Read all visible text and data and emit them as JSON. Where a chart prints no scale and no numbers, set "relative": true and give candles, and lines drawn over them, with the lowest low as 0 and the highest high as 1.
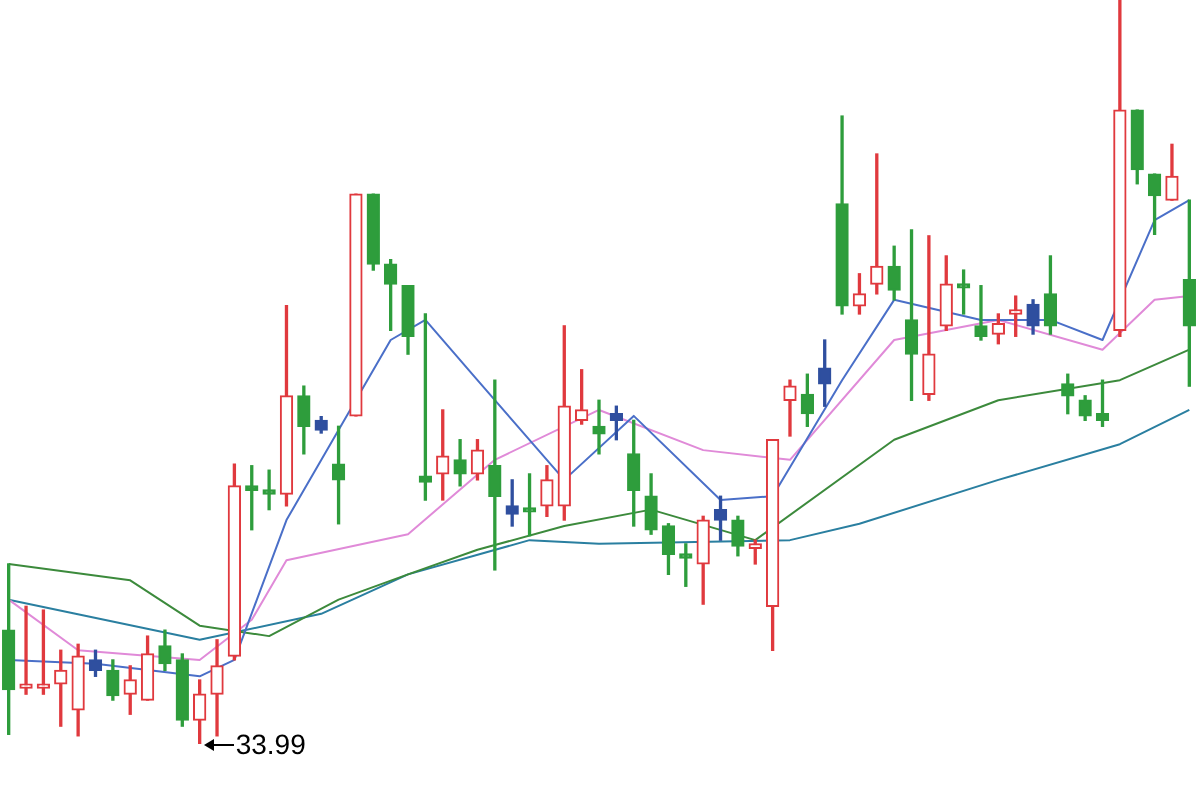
{
  "chart_data": {
    "type": "candlestick",
    "relative": true,
    "categories": [
      null,
      null,
      null,
      null,
      null,
      null,
      null,
      null,
      null,
      null,
      null,
      null,
      null,
      null,
      null,
      null,
      null,
      null,
      null,
      null,
      null,
      null,
      null,
      null,
      null,
      null,
      null,
      null,
      null,
      null,
      null,
      null,
      null,
      null,
      null,
      null,
      null,
      null,
      null,
      null,
      null,
      null,
      null,
      null,
      null,
      null,
      null,
      null,
      null,
      null,
      null,
      null,
      null,
      null,
      null,
      null,
      null,
      null,
      null,
      null,
      null,
      null,
      null,
      null,
      null,
      null,
      null,
      null,
      null
    ],
    "ohlc": [
      [
        0.153,
        0.242,
        0.013,
        0.073
      ],
      [
        0.075,
        0.185,
        0.067,
        0.078
      ],
      [
        0.075,
        0.18,
        0.067,
        0.078
      ],
      [
        0.081,
        0.126,
        0.024,
        0.099
      ],
      [
        0.046,
        0.134,
        0.011,
        0.118
      ],
      [
        0.113,
        0.126,
        0.091,
        0.099
      ],
      [
        0.099,
        0.113,
        0.059,
        0.065
      ],
      [
        0.067,
        0.105,
        0.04,
        0.086
      ],
      [
        0.059,
        0.145,
        0.059,
        0.121
      ],
      [
        0.132,
        0.153,
        0.099,
        0.108
      ],
      [
        0.113,
        0.121,
        0.024,
        0.032
      ],
      [
        0.032,
        0.086,
        0,
        0.067
      ],
      [
        0.067,
        0.14,
        0.011,
        0.105
      ],
      [
        0.118,
        0.376,
        0.113,
        0.347
      ],
      [
        0.347,
        0.374,
        0.288,
        0.341
      ],
      [
        0.341,
        0.368,
        0.315,
        0.336
      ],
      [
        0.336,
        0.589,
        0.32,
        0.468
      ],
      [
        0.468,
        0.481,
        0.39,
        0.427
      ],
      [
        0.435,
        0.44,
        0.418,
        0.422
      ],
      [
        0.376,
        0.427,
        0.296,
        0.355
      ],
      [
        0.441,
        0.739,
        0.441,
        0.739
      ],
      [
        0.739,
        0.739,
        0.637,
        0.645
      ],
      [
        0.645,
        0.651,
        0.556,
        0.618
      ],
      [
        0.616,
        0.616,
        0.524,
        0.548
      ],
      [
        0.36,
        0.578,
        0.328,
        0.352
      ],
      [
        0.363,
        0.449,
        0.328,
        0.387
      ],
      [
        0.382,
        0.409,
        0.347,
        0.363
      ],
      [
        0.363,
        0.409,
        0.355,
        0.395
      ],
      [
        0.374,
        0.489,
        0.234,
        0.333
      ],
      [
        0.32,
        0.355,
        0.293,
        0.309
      ],
      [
        0.317,
        0.363,
        0.28,
        0.312
      ],
      [
        0.32,
        0.374,
        0.306,
        0.355
      ],
      [
        0.32,
        0.562,
        0.301,
        0.454
      ],
      [
        0.435,
        0.503,
        0.43,
        0.449
      ],
      [
        0.427,
        0.462,
        0.39,
        0.417
      ],
      [
        0.444,
        0.454,
        0.409,
        0.435
      ],
      [
        0.39,
        0.435,
        0.293,
        0.341
      ],
      [
        0.333,
        0.363,
        0.282,
        0.288
      ],
      [
        0.293,
        0.296,
        0.228,
        0.255
      ],
      [
        0.255,
        0.269,
        0.212,
        0.25
      ],
      [
        0.242,
        0.306,
        0.188,
        0.301
      ],
      [
        0.315,
        0.333,
        0.274,
        0.301
      ],
      [
        0.301,
        0.306,
        0.253,
        0.266
      ],
      [
        0.263,
        0.274,
        0.242,
        0.269
      ],
      [
        0.185,
        0.409,
        0.126,
        0.409
      ],
      [
        0.462,
        0.489,
        0.414,
        0.481
      ],
      [
        0.47,
        0.497,
        0.427,
        0.444
      ],
      [
        0.505,
        0.543,
        0.454,
        0.484
      ],
      [
        0.726,
        0.844,
        0.578,
        0.589
      ],
      [
        0.589,
        0.632,
        0.578,
        0.605
      ],
      [
        0.618,
        0.793,
        0.605,
        0.642
      ],
      [
        0.642,
        0.669,
        0.597,
        0.61
      ],
      [
        0.57,
        0.691,
        0.462,
        0.524
      ],
      [
        0.47,
        0.683,
        0.462,
        0.524
      ],
      [
        0.562,
        0.656,
        0.556,
        0.618
      ],
      [
        0.618,
        0.637,
        0.578,
        0.613
      ],
      [
        0.562,
        0.616,
        0.543,
        0.548
      ],
      [
        0.551,
        0.578,
        0.538,
        0.565
      ],
      [
        0.578,
        0.602,
        0.548,
        0.583
      ],
      [
        0.591,
        0.597,
        0.551,
        0.562
      ],
      [
        0.605,
        0.656,
        0.551,
        0.562
      ],
      [
        0.484,
        0.497,
        0.444,
        0.468
      ],
      [
        0.462,
        0.468,
        0.435,
        0.441
      ],
      [
        0.444,
        0.489,
        0.427,
        0.435
      ],
      [
        0.556,
        1,
        0.548,
        0.852
      ],
      [
        0.852,
        0.852,
        0.753,
        0.772
      ],
      [
        0.766,
        0.766,
        0.685,
        0.737
      ],
      [
        0.731,
        0.806,
        0.731,
        0.763
      ],
      [
        0.624,
        0.731,
        0.481,
        0.562
      ]
    ],
    "colors": [
      "#2e9d3c",
      "#e0393e",
      "#e0393e",
      "#e0393e",
      "#e0393e",
      "#2f4f9f",
      "#2e9d3c",
      "#e0393e",
      "#e0393e",
      "#2e9d3c",
      "#2e9d3c",
      "#e0393e",
      "#e0393e",
      "#e0393e",
      "#2e9d3c",
      "#2e9d3c",
      "#e0393e",
      "#2e9d3c",
      "#2f4f9f",
      "#2e9d3c",
      "#e0393e",
      "#2e9d3c",
      "#2e9d3c",
      "#2e9d3c",
      "#2e9d3c",
      "#e0393e",
      "#2e9d3c",
      "#e0393e",
      "#2e9d3c",
      "#2f4f9f",
      "#2e9d3c",
      "#e0393e",
      "#e0393e",
      "#e0393e",
      "#2e9d3c",
      "#2f4f9f",
      "#2e9d3c",
      "#2e9d3c",
      "#2e9d3c",
      "#2e9d3c",
      "#e0393e",
      "#2f4f9f",
      "#2e9d3c",
      "#e0393e",
      "#e0393e",
      "#e0393e",
      "#2e9d3c",
      "#2f4f9f",
      "#2e9d3c",
      "#e0393e",
      "#e0393e",
      "#2e9d3c",
      "#2e9d3c",
      "#e0393e",
      "#e0393e",
      "#2e9d3c",
      "#2e9d3c",
      "#e0393e",
      "#e0393e",
      "#2f4f9f",
      "#2e9d3c",
      "#2e9d3c",
      "#2e9d3c",
      "#2e9d3c",
      "#e0393e",
      "#2e9d3c",
      "#2e9d3c",
      "#e0393e",
      "#2e9d3c"
    ],
    "series": [
      {
        "type": "line",
        "color": "#4a6fc8",
        "values": [
          0.113,
          null,
          null,
          null,
          null,
          0.108,
          null,
          null,
          null,
          null,
          null,
          0.091,
          null,
          0.113,
          null,
          null,
          0.301,
          null,
          null,
          null,
          null,
          null,
          0.543,
          null,
          0.57,
          null,
          null,
          0.489,
          null,
          null,
          null,
          null,
          0.355,
          null,
          null,
          null,
          0.441,
          null,
          null,
          null,
          null,
          0.328,
          null,
          null,
          0.333,
          null,
          null,
          null,
          0.489,
          null,
          null,
          0.597,
          null,
          null,
          null,
          null,
          0.57,
          null,
          null,
          null,
          0.57,
          null,
          null,
          0.543,
          null,
          null,
          0.704,
          null,
          0.731
        ]
      },
      {
        "type": "line",
        "color": "#e08ad8",
        "values": [
          0.194,
          null,
          null,
          null,
          0.126,
          null,
          null,
          null,
          null,
          null,
          null,
          0.113,
          null,
          null,
          0.167,
          null,
          0.247,
          null,
          null,
          null,
          null,
          null,
          null,
          0.282,
          null,
          null,
          null,
          null,
          0.382,
          null,
          null,
          null,
          null,
          null,
          0.449,
          null,
          null,
          null,
          null,
          null,
          0.395,
          null,
          null,
          null,
          null,
          0.382,
          null,
          null,
          null,
          null,
          null,
          0.543,
          null,
          null,
          null,
          null,
          null,
          0.57,
          null,
          null,
          null,
          null,
          null,
          0.53,
          null,
          null,
          0.597,
          null,
          0.602
        ]
      },
      {
        "type": "line",
        "color": "#3c8a3c",
        "values": [
          0.242,
          null,
          null,
          null,
          null,
          null,
          null,
          0.22,
          null,
          null,
          null,
          0.159,
          null,
          null,
          null,
          0.145,
          null,
          null,
          null,
          0.194,
          null,
          null,
          null,
          0.228,
          null,
          null,
          null,
          0.261,
          null,
          null,
          null,
          null,
          0.293,
          null,
          null,
          null,
          null,
          0.315,
          null,
          null,
          null,
          null,
          null,
          0.274,
          null,
          null,
          null,
          null,
          null,
          null,
          null,
          0.409,
          null,
          null,
          null,
          null,
          null,
          0.462,
          null,
          null,
          null,
          null,
          null,
          null,
          0.489,
          null,
          null,
          null,
          0.53
        ]
      },
      {
        "type": "line",
        "color": "#2a7fa0",
        "values": [
          0.194,
          null,
          null,
          null,
          null,
          null,
          null,
          null,
          null,
          null,
          null,
          0.14,
          null,
          null,
          null,
          null,
          null,
          null,
          0.175,
          null,
          null,
          null,
          null,
          0.228,
          null,
          null,
          null,
          null,
          null,
          null,
          0.274,
          null,
          null,
          null,
          0.269,
          null,
          null,
          null,
          null,
          null,
          null,
          null,
          null,
          null,
          null,
          0.274,
          null,
          null,
          null,
          0.296,
          null,
          null,
          null,
          null,
          null,
          null,
          null,
          0.355,
          null,
          null,
          null,
          null,
          null,
          null,
          0.403,
          null,
          null,
          null,
          0.449
        ]
      }
    ],
    "annotations": [
      "33.99"
    ]
  }
}
